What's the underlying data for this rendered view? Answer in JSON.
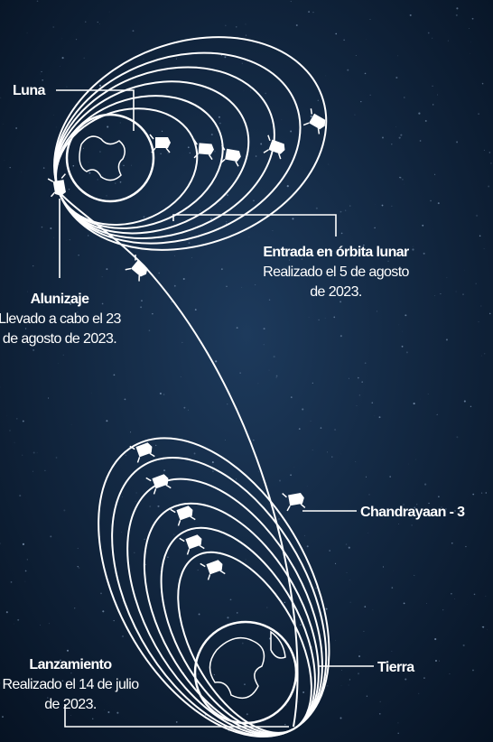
{
  "labels": {
    "moon": "Luna",
    "landing": {
      "title": "Alunizaje",
      "lines": [
        "Llevado a cabo el 23",
        "de agosto de 2023."
      ]
    },
    "lunar_orbit": {
      "title": "Entrada en órbita lunar",
      "lines": [
        "Realizado el 5 de agosto",
        "de 2023."
      ]
    },
    "craft": "Chandrayaan - 3",
    "earth": "Tierra",
    "launch": {
      "title": "Lanzamiento",
      "lines": [
        "Realizado el 14 de julio",
        "de 2023."
      ]
    }
  }
}
